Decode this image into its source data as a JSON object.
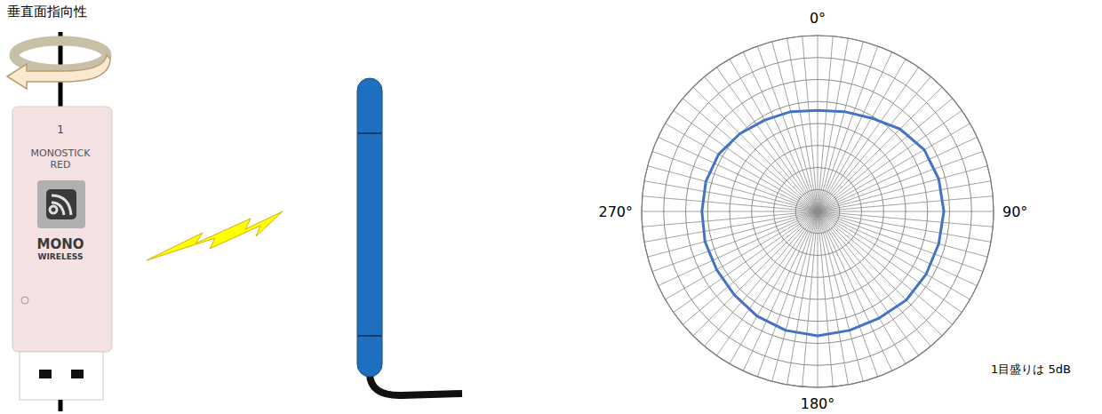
{
  "chart_data": {
    "type": "polar",
    "title": "垂直面指向性",
    "x": [
      0,
      15,
      30,
      45,
      60,
      75,
      90,
      105,
      120,
      135,
      150,
      165,
      180,
      195,
      210,
      225,
      240,
      255,
      270,
      285,
      300,
      315,
      330,
      345
    ],
    "series": [
      {
        "color": "#4472c4",
        "values": [
          -17,
          -16.5,
          -15.5,
          -13.5,
          -12,
          -11.5,
          -11.3,
          -11.5,
          -11.5,
          -11.5,
          -12,
          -12,
          -11.7,
          -12,
          -12.5,
          -13.2,
          -13.5,
          -13.5,
          -13.7,
          -13.7,
          -14,
          -15,
          -16,
          -16.5
        ]
      }
    ],
    "xticks": [
      {
        "value": 0,
        "label": "0°"
      },
      {
        "value": 90,
        "label": "90°"
      },
      {
        "value": 180,
        "label": "180°"
      },
      {
        "value": 270,
        "label": "270°"
      }
    ],
    "xminor": [
      0,
      5,
      10,
      15,
      20,
      25,
      30,
      35,
      40,
      45,
      50,
      55,
      60,
      65,
      70,
      75,
      80,
      85,
      90,
      95,
      100,
      105,
      110,
      115,
      120,
      125,
      130,
      135,
      140,
      145,
      150,
      155,
      160,
      165,
      170,
      175,
      180,
      185,
      190,
      195,
      200,
      205,
      210,
      215,
      220,
      225,
      230,
      235,
      240,
      245,
      250,
      255,
      260,
      265,
      270,
      275,
      280,
      285,
      290,
      295,
      300,
      305,
      310,
      315,
      320,
      325,
      330,
      335,
      340,
      345,
      350,
      355
    ],
    "ylim": [
      -40,
      0
    ],
    "yticks": [
      -40,
      -35,
      -30,
      -25,
      -20,
      -15,
      -10,
      -5,
      0
    ],
    "tick_labels": "x",
    "grid": true,
    "annotations": [
      "1目盛りは 5dB"
    ]
  },
  "illustration": {
    "device_number": "1",
    "device_name": [
      "MONOSTICK",
      "RED"
    ],
    "logo": [
      "MONO",
      "WIRELESS"
    ]
  }
}
